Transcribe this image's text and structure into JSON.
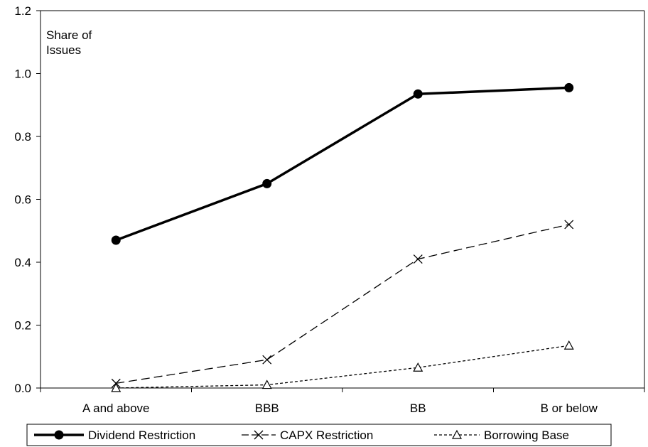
{
  "chart_data": {
    "type": "line",
    "title": "",
    "xlabel": "",
    "ylabel_lines": [
      "Share of",
      "Issues"
    ],
    "categories": [
      "A and above",
      "BBB",
      "BB",
      "B or below"
    ],
    "ylim": [
      0,
      1.2
    ],
    "yticks": [
      "0.0",
      "0.2",
      "0.4",
      "0.6",
      "0.8",
      "1.0",
      "1.2"
    ],
    "yticks_values": [
      0,
      0.2,
      0.4,
      0.6,
      0.8,
      1.0,
      1.2
    ],
    "grid": false,
    "legend_position": "bottom",
    "series": [
      {
        "name": "Dividend Restriction",
        "values": [
          0.47,
          0.65,
          0.935,
          0.955
        ],
        "color": "#000000",
        "line_style": "solid",
        "marker": "filled-circle"
      },
      {
        "name": "CAPX Restriction",
        "values": [
          0.015,
          0.09,
          0.41,
          0.52
        ],
        "color": "#000000",
        "line_style": "long-dash",
        "marker": "x"
      },
      {
        "name": "Borrowing Base",
        "values": [
          0.0,
          0.01,
          0.065,
          0.135
        ],
        "color": "#000000",
        "line_style": "short-dash",
        "marker": "open-triangle"
      }
    ]
  }
}
